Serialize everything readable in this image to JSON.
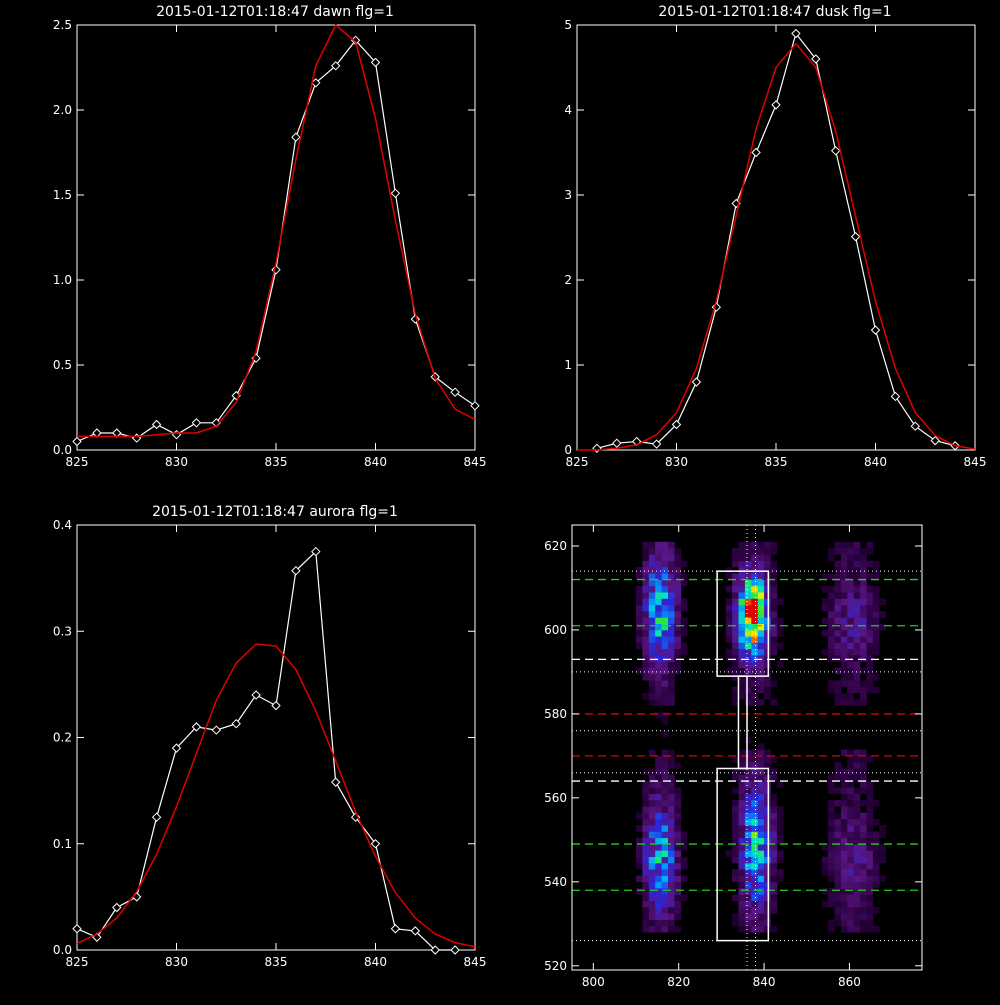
{
  "colors": {
    "background": "#000000",
    "axis": "#ffffff",
    "measured": "#ffffff",
    "fit": "#e00000",
    "green_guide": "#22cc22",
    "white_guide": "#ffffff",
    "red_guide": "#e00000"
  },
  "chart_data": [
    {
      "type": "line",
      "title": "2015-01-12T01:18:47 dawn flg=1",
      "xlim": [
        825,
        845
      ],
      "ylim": [
        0,
        2.5
      ],
      "xticks": [
        825,
        830,
        835,
        840,
        845
      ],
      "xtick_labels": [
        "825",
        "830",
        "835",
        "840",
        "845"
      ],
      "yticks": [
        0,
        0.5,
        1.0,
        1.5,
        2.0,
        2.5
      ],
      "ytick_labels": [
        "0.0",
        "0.5",
        "1.0",
        "1.5",
        "2.0",
        "2.5"
      ],
      "series": [
        {
          "style": "measured",
          "x": [
            825,
            826,
            827,
            828,
            829,
            830,
            831,
            832,
            833,
            834,
            835,
            836,
            837,
            838,
            839,
            840,
            841,
            842,
            843,
            844,
            845
          ],
          "y": [
            0.05,
            0.1,
            0.1,
            0.07,
            0.15,
            0.09,
            0.16,
            0.16,
            0.32,
            0.54,
            1.06,
            1.84,
            2.16,
            2.26,
            2.41,
            2.28,
            1.51,
            0.77,
            0.43,
            0.34,
            0.26
          ]
        },
        {
          "style": "fit",
          "x": [
            825,
            826,
            827,
            828,
            829,
            830,
            831,
            832,
            833,
            834,
            835,
            836,
            837,
            838,
            839,
            840,
            841,
            842,
            843,
            844,
            845
          ],
          "y": [
            0.08,
            0.08,
            0.08,
            0.08,
            0.09,
            0.1,
            0.1,
            0.14,
            0.28,
            0.58,
            1.1,
            1.71,
            2.26,
            2.52,
            2.4,
            1.95,
            1.35,
            0.8,
            0.42,
            0.24,
            0.18
          ]
        }
      ]
    },
    {
      "type": "line",
      "title": "2015-01-12T01:18:47 dusk flg=1",
      "xlim": [
        825,
        845
      ],
      "ylim": [
        0,
        5
      ],
      "xticks": [
        825,
        830,
        835,
        840,
        845
      ],
      "xtick_labels": [
        "825",
        "830",
        "835",
        "840",
        "845"
      ],
      "yticks": [
        0,
        1,
        2,
        3,
        4,
        5
      ],
      "ytick_labels": [
        "0",
        "1",
        "2",
        "3",
        "4",
        "5"
      ],
      "series": [
        {
          "style": "measured",
          "x": [
            826,
            827,
            828,
            829,
            830,
            831,
            832,
            833,
            834,
            835,
            836,
            837,
            838,
            839,
            840,
            841,
            842,
            843,
            844
          ],
          "y": [
            0.02,
            0.08,
            0.1,
            0.07,
            0.3,
            0.8,
            1.68,
            2.9,
            3.5,
            4.06,
            4.9,
            4.6,
            3.52,
            2.51,
            1.41,
            0.63,
            0.28,
            0.11,
            0.05
          ]
        },
        {
          "style": "fit",
          "x": [
            825,
            826,
            827,
            828,
            829,
            830,
            831,
            832,
            833,
            834,
            835,
            836,
            837,
            838,
            839,
            840,
            841,
            842,
            843,
            844,
            845
          ],
          "y": [
            0,
            0,
            0.02,
            0.06,
            0.18,
            0.44,
            0.96,
            1.75,
            2.76,
            3.78,
            4.5,
            4.78,
            4.5,
            3.75,
            2.75,
            1.75,
            0.96,
            0.44,
            0.17,
            0.05,
            0.01
          ]
        }
      ]
    },
    {
      "type": "line",
      "title": "2015-01-12T01:18:47 aurora flg=1",
      "xlim": [
        825,
        845
      ],
      "ylim": [
        0,
        0.4
      ],
      "xticks": [
        825,
        830,
        835,
        840,
        845
      ],
      "xtick_labels": [
        "825",
        "830",
        "835",
        "840",
        "845"
      ],
      "yticks": [
        0,
        0.1,
        0.2,
        0.3,
        0.4
      ],
      "ytick_labels": [
        "0.0",
        "0.1",
        "0.2",
        "0.3",
        "0.4"
      ],
      "series": [
        {
          "style": "measured",
          "x": [
            825,
            826,
            827,
            828,
            829,
            830,
            831,
            832,
            833,
            834,
            835,
            836,
            837,
            838,
            839,
            840,
            841,
            842,
            843,
            844
          ],
          "y": [
            0.02,
            0.012,
            0.04,
            0.05,
            0.125,
            0.19,
            0.21,
            0.207,
            0.213,
            0.24,
            0.23,
            0.357,
            0.375,
            0.158,
            0.125,
            0.1,
            0.02,
            0.018,
            -0.002,
            -0.002
          ]
        },
        {
          "style": "fit",
          "x": [
            825,
            826,
            827,
            828,
            829,
            830,
            831,
            832,
            833,
            834,
            835,
            836,
            837,
            838,
            839,
            840,
            841,
            842,
            843,
            844,
            845
          ],
          "y": [
            0.006,
            0.015,
            0.03,
            0.055,
            0.09,
            0.135,
            0.185,
            0.235,
            0.27,
            0.288,
            0.286,
            0.264,
            0.225,
            0.178,
            0.13,
            0.088,
            0.054,
            0.03,
            0.015,
            0.007,
            0.003
          ]
        }
      ]
    },
    {
      "type": "heatmap",
      "xlim": [
        795,
        877
      ],
      "ylim": [
        519,
        625
      ],
      "xticks": [
        800,
        820,
        840,
        860
      ],
      "xtick_labels": [
        "800",
        "820",
        "840",
        "860"
      ],
      "yticks": [
        520,
        540,
        560,
        580,
        600,
        620
      ],
      "ytick_labels": [
        "520",
        "540",
        "560",
        "580",
        "600",
        "620"
      ],
      "columns": [
        {
          "x_center": 815,
          "width": 8
        },
        {
          "x_center": 837,
          "width": 10
        },
        {
          "x_center": 860,
          "width": 10
        }
      ],
      "blobs": [
        {
          "x": 815,
          "y": 604,
          "sx": 2.5,
          "sy": 8,
          "amp": 0.48
        },
        {
          "x": 815,
          "y": 545,
          "sx": 2.5,
          "sy": 8,
          "amp": 0.42
        },
        {
          "x": 836.5,
          "y": 603,
          "sx": 2.3,
          "sy": 6,
          "amp": 0.95
        },
        {
          "x": 837.5,
          "y": 548,
          "sx": 2.3,
          "sy": 9,
          "amp": 0.5
        },
        {
          "x": 860,
          "y": 602,
          "sx": 4,
          "sy": 6,
          "amp": 0.14
        },
        {
          "x": 860,
          "y": 545,
          "sx": 4,
          "sy": 7,
          "amp": 0.12
        }
      ],
      "boxes": [
        {
          "x0": 829,
          "x1": 841,
          "y0": 589,
          "y1": 614
        },
        {
          "x0": 829,
          "x1": 841,
          "y0": 526,
          "y1": 567
        },
        {
          "x0": 834,
          "x1": 836,
          "y0": 567,
          "y1": 589
        }
      ],
      "vlines_dotted": [
        836,
        838
      ],
      "hlines_dotted": [
        614,
        590,
        576,
        566,
        526
      ],
      "hlines_green": [
        612,
        601,
        549,
        538
      ],
      "hlines_white": [
        593,
        564
      ],
      "hlines_red": [
        580,
        570
      ]
    }
  ]
}
